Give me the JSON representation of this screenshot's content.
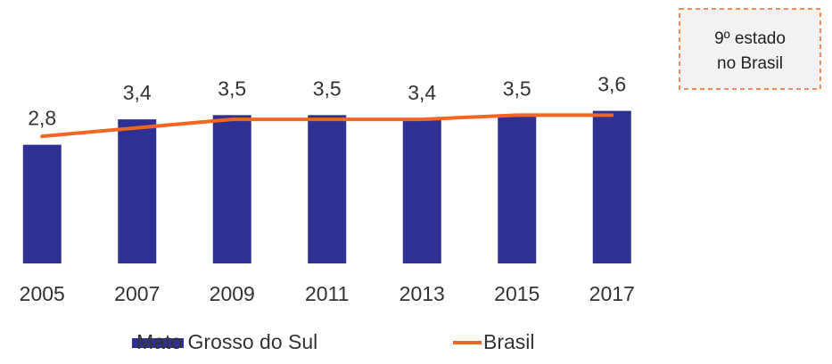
{
  "chart_data": {
    "type": "bar_line",
    "categories": [
      "2005",
      "2007",
      "2009",
      "2011",
      "2013",
      "2015",
      "2017"
    ],
    "series": [
      {
        "name": "Mato Grosso do Sul",
        "type": "bar",
        "color": "#2e3192",
        "values": [
          2.8,
          3.4,
          3.5,
          3.5,
          3.4,
          3.5,
          3.6
        ],
        "value_labels": [
          "2,8",
          "3,4",
          "3,5",
          "3,5",
          "3,4",
          "3,5",
          "3,6"
        ]
      },
      {
        "name": "Brasil",
        "type": "line",
        "color": "#f26522",
        "values": [
          3.0,
          3.2,
          3.4,
          3.4,
          3.4,
          3.5,
          3.5
        ]
      }
    ],
    "ylim": [
      0,
      4.2
    ],
    "annotation": [
      "9º estado",
      "no Brasil"
    ],
    "legend": "bottom"
  }
}
